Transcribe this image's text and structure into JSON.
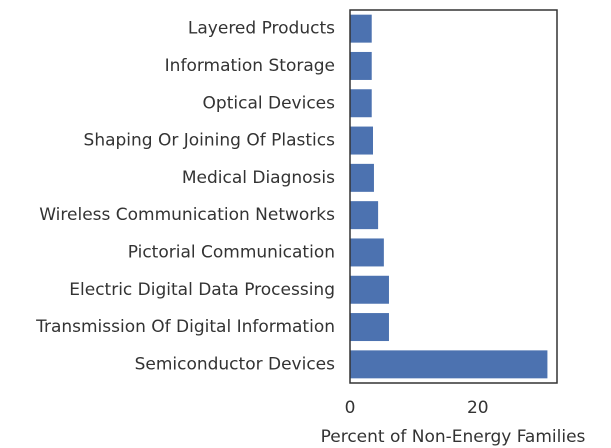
{
  "chart_data": {
    "type": "barh",
    "categories": [
      "Layered Products",
      "Information Storage",
      "Optical Devices",
      "Shaping Or Joining Of Plastics",
      "Medical Diagnosis",
      "Wireless Communication Networks",
      "Pictorial Communication",
      "Electric Digital Data Processing",
      "Transmission Of Digital Information",
      "Semiconductor Devices"
    ],
    "values": [
      3.4,
      3.4,
      3.4,
      3.6,
      3.75,
      4.4,
      5.3,
      6.1,
      6.1,
      30.9
    ],
    "color": "#4c72b0",
    "xlabel": "Percent of Non-Energy Families",
    "xlim": [
      0,
      32.4
    ],
    "xticks": [
      0,
      20
    ],
    "grid": false
  }
}
